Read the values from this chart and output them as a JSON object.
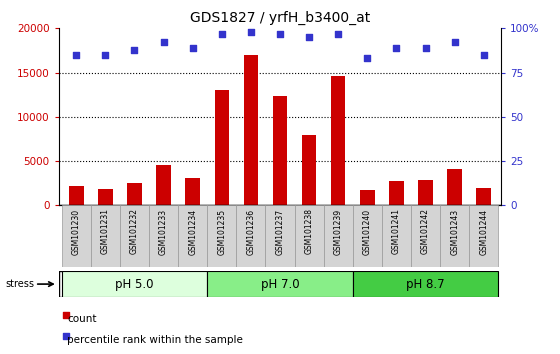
{
  "title": "GDS1827 / yrfH_b3400_at",
  "samples": [
    "GSM101230",
    "GSM101231",
    "GSM101232",
    "GSM101233",
    "GSM101234",
    "GSM101235",
    "GSM101236",
    "GSM101237",
    "GSM101238",
    "GSM101239",
    "GSM101240",
    "GSM101241",
    "GSM101242",
    "GSM101243",
    "GSM101244"
  ],
  "counts": [
    2200,
    1900,
    2500,
    4500,
    3100,
    13000,
    17000,
    12400,
    8000,
    14600,
    1700,
    2750,
    2900,
    4100,
    2000
  ],
  "percentile_ranks": [
    85,
    85,
    88,
    92,
    89,
    97,
    98,
    97,
    95,
    97,
    83,
    89,
    89,
    92,
    85
  ],
  "bar_color": "#cc0000",
  "dot_color": "#3333cc",
  "ylim_left": [
    0,
    20000
  ],
  "ylim_right": [
    0,
    100
  ],
  "yticks_left": [
    0,
    5000,
    10000,
    15000,
    20000
  ],
  "yticks_right": [
    0,
    25,
    50,
    75,
    100
  ],
  "groups": [
    {
      "label": "pH 5.0",
      "start": 0,
      "end": 5,
      "color": "#ddffdd"
    },
    {
      "label": "pH 7.0",
      "start": 5,
      "end": 10,
      "color": "#88ee88"
    },
    {
      "label": "pH 8.7",
      "start": 10,
      "end": 15,
      "color": "#44cc44"
    }
  ],
  "stress_label": "stress",
  "legend_count": "count",
  "legend_pct": "percentile rank within the sample",
  "background_color": "#ffffff",
  "tick_label_color_left": "#cc0000",
  "tick_label_color_right": "#3333cc",
  "grid_color": "#000000",
  "bar_width": 0.5
}
